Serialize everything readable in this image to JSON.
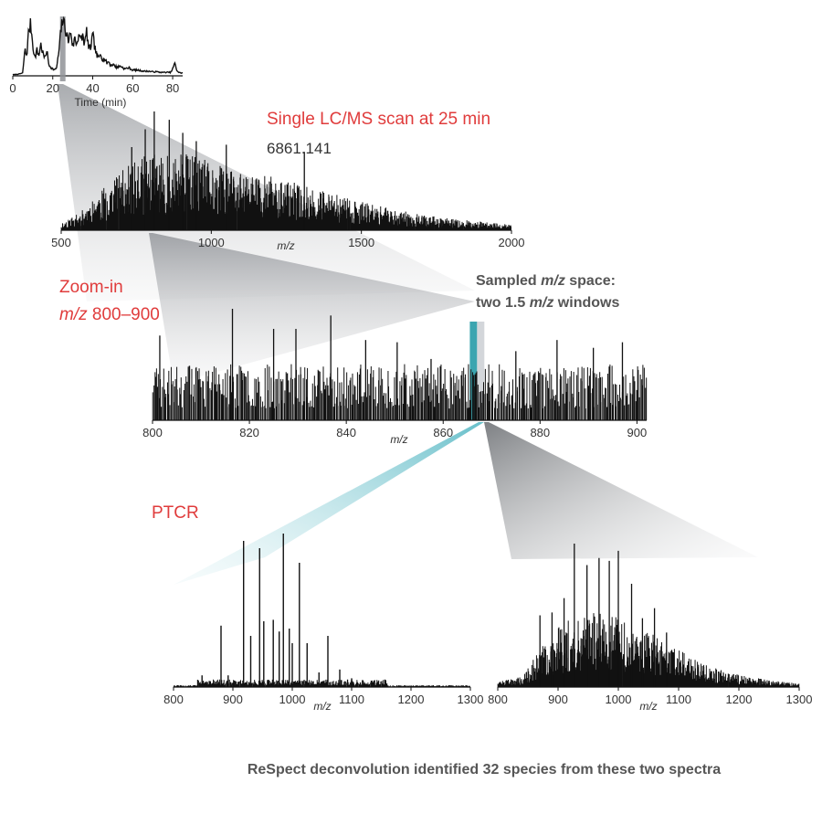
{
  "colors": {
    "trace": "#111111",
    "highlight_red": "#e03c3c",
    "teal_window": "#3ba5b0",
    "grey_window": "#d3d6da"
  },
  "labels": {
    "scan_title": "Single LC/MS scan at 25 min",
    "peak_label": "6861.141",
    "zoom_line1": "Zoom-in",
    "zoom_line2_italic": "m/z",
    "zoom_line2_rest": " 800–900",
    "sampled_line1_a": "Sampled ",
    "sampled_line1_italic": "m/z",
    "sampled_line1_b": " space:",
    "sampled_line2_a": "two 1.5 ",
    "sampled_line2_italic": "m/z",
    "sampled_line2_b": " windows",
    "ptcr": "PTCR",
    "caption": "ReSpect deconvolution identified 32 species from these two spectra"
  },
  "chart_data": [
    {
      "id": "lc_chromatogram",
      "type": "line",
      "xlabel": "Time (min)",
      "ylabel": "",
      "xlim": [
        0,
        85
      ],
      "xticks": [
        "0",
        "20",
        "40",
        "60",
        "80"
      ],
      "highlight_time": 25,
      "x": [
        0,
        3,
        5,
        6,
        7,
        8,
        9,
        10,
        11,
        12,
        13,
        14,
        15,
        16,
        17,
        18,
        19,
        20,
        21,
        22,
        23,
        24,
        25,
        26,
        27,
        28,
        29,
        30,
        31,
        32,
        33,
        34,
        35,
        36,
        37,
        38,
        39,
        40,
        41,
        42,
        43,
        44,
        45,
        46,
        47,
        48,
        49,
        50,
        52,
        54,
        56,
        58,
        60,
        62,
        64,
        66,
        68,
        70,
        72,
        74,
        76,
        78,
        79,
        80,
        81,
        82,
        83,
        84,
        85
      ],
      "values": [
        0.02,
        0.03,
        0.05,
        0.45,
        0.35,
        0.8,
        0.9,
        0.55,
        0.3,
        0.45,
        0.35,
        0.55,
        0.4,
        0.3,
        0.45,
        0.2,
        0.15,
        0.12,
        0.1,
        0.15,
        0.4,
        0.75,
        1.0,
        0.9,
        0.7,
        0.6,
        0.8,
        0.5,
        0.65,
        0.55,
        0.75,
        0.6,
        0.7,
        0.55,
        0.78,
        0.45,
        0.5,
        0.7,
        0.5,
        0.35,
        0.3,
        0.4,
        0.28,
        0.3,
        0.22,
        0.25,
        0.18,
        0.2,
        0.15,
        0.17,
        0.12,
        0.14,
        0.1,
        0.1,
        0.09,
        0.08,
        0.08,
        0.07,
        0.07,
        0.06,
        0.06,
        0.06,
        0.06,
        0.12,
        0.22,
        0.1,
        0.06,
        0.05,
        0.05
      ]
    },
    {
      "id": "full_scan",
      "type": "line",
      "xlabel": "m/z",
      "ylabel": "",
      "xlim": [
        500,
        2000
      ],
      "xticks": [
        "500",
        "1000",
        "1500",
        "2000"
      ],
      "envelope_x": [
        500,
        560,
        620,
        680,
        720,
        760,
        800,
        850,
        900,
        950,
        1000,
        1100,
        1200,
        1300,
        1400,
        1500,
        1600,
        1700,
        1800,
        1900,
        2000
      ],
      "envelope_y": [
        0.05,
        0.12,
        0.25,
        0.38,
        0.45,
        0.5,
        0.55,
        0.52,
        0.55,
        0.52,
        0.48,
        0.42,
        0.38,
        0.32,
        0.26,
        0.2,
        0.15,
        0.11,
        0.08,
        0.06,
        0.04
      ],
      "tall_peaks": [
        {
          "x": 810,
          "y": 1.0
        },
        {
          "x": 860,
          "y": 0.93
        },
        {
          "x": 780,
          "y": 0.85
        },
        {
          "x": 905,
          "y": 0.82
        },
        {
          "x": 950,
          "y": 0.75
        },
        {
          "x": 1310,
          "y": 0.66
        },
        {
          "x": 735,
          "y": 0.7
        },
        {
          "x": 1050,
          "y": 0.72
        }
      ],
      "annotated_peak": {
        "x": 1310,
        "label": "6861.141"
      }
    },
    {
      "id": "zoom_800_900",
      "type": "line",
      "xlabel": "m/z",
      "ylabel": "",
      "xlim": [
        800,
        902
      ],
      "xticks": [
        "800",
        "820",
        "840",
        "860",
        "880",
        "900"
      ],
      "tall_peaks": [
        {
          "x": 816.5,
          "y": 1.0
        },
        {
          "x": 836.8,
          "y": 0.94
        },
        {
          "x": 825.0,
          "y": 0.82
        },
        {
          "x": 829.6,
          "y": 0.82
        },
        {
          "x": 801.5,
          "y": 0.76
        },
        {
          "x": 844.0,
          "y": 0.72
        },
        {
          "x": 850.5,
          "y": 0.7
        },
        {
          "x": 857.5,
          "y": 0.55
        },
        {
          "x": 883.5,
          "y": 0.72
        },
        {
          "x": 875.0,
          "y": 0.62
        },
        {
          "x": 897.0,
          "y": 0.7
        },
        {
          "x": 891.0,
          "y": 0.65
        }
      ],
      "sampled_windows": [
        {
          "start": 865.5,
          "end": 867.0,
          "color": "#3ba5b0"
        },
        {
          "start": 867.0,
          "end": 868.5,
          "color": "#d3d6da"
        }
      ]
    },
    {
      "id": "ptcr_window1",
      "type": "line",
      "xlabel": "m/z",
      "ylabel": "",
      "xlim": [
        800,
        1300
      ],
      "xticks": [
        "800",
        "900",
        "1000",
        "1100",
        "1200",
        "1300"
      ],
      "x": [
        848,
        862,
        880,
        892,
        918,
        930,
        945,
        952,
        960,
        968,
        978,
        985,
        995,
        1000,
        1012,
        1025,
        1045,
        1060,
        1080,
        1100,
        1145
      ],
      "values": [
        0.08,
        0.04,
        0.42,
        0.08,
        1.0,
        0.35,
        0.95,
        0.45,
        0.05,
        0.46,
        0.38,
        1.05,
        0.4,
        0.3,
        0.85,
        0.3,
        0.1,
        0.35,
        0.12,
        0.06,
        0.04
      ]
    },
    {
      "id": "ptcr_window2",
      "type": "line",
      "xlabel": "m/z",
      "ylabel": "",
      "xlim": [
        800,
        1300
      ],
      "xticks": [
        "800",
        "900",
        "1000",
        "1100",
        "1200",
        "1300"
      ],
      "envelope_x": [
        800,
        840,
        870,
        900,
        930,
        960,
        990,
        1020,
        1050,
        1080,
        1110,
        1140,
        1170,
        1200,
        1250,
        1300
      ],
      "envelope_y": [
        0.03,
        0.06,
        0.22,
        0.35,
        0.42,
        0.45,
        0.42,
        0.38,
        0.32,
        0.26,
        0.2,
        0.14,
        0.1,
        0.07,
        0.04,
        0.02
      ],
      "tall_peaks": [
        {
          "x": 927,
          "y": 1.0
        },
        {
          "x": 1000,
          "y": 0.95
        },
        {
          "x": 968,
          "y": 0.9
        },
        {
          "x": 948,
          "y": 0.85
        },
        {
          "x": 985,
          "y": 0.88
        },
        {
          "x": 1022,
          "y": 0.72
        },
        {
          "x": 910,
          "y": 0.62
        },
        {
          "x": 1060,
          "y": 0.55
        },
        {
          "x": 890,
          "y": 0.52
        },
        {
          "x": 1040,
          "y": 0.48
        },
        {
          "x": 870,
          "y": 0.5
        },
        {
          "x": 1080,
          "y": 0.38
        }
      ]
    }
  ]
}
